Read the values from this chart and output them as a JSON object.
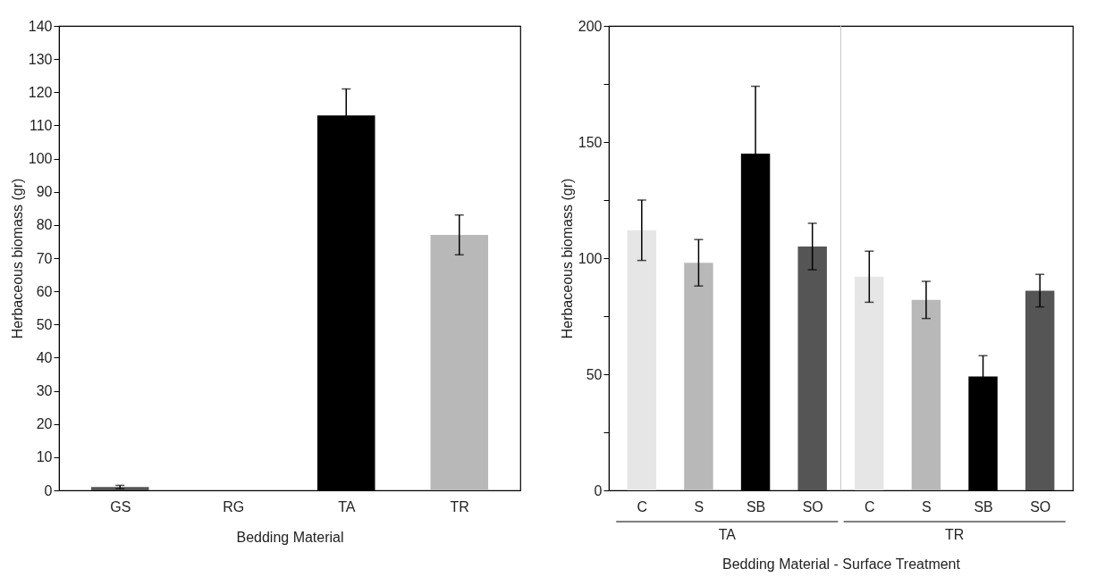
{
  "chart_data": [
    {
      "type": "bar",
      "xlabel": "Bedding Material",
      "ylabel": "Herbaceous biomass (gr)",
      "categories": [
        "GS",
        "RG",
        "TA",
        "TR"
      ],
      "values": [
        1,
        0,
        113,
        77
      ],
      "errors": [
        0.5,
        null,
        8,
        6
      ],
      "colors": [
        "#555555",
        "#555555",
        "#000000",
        "#b8b8b8"
      ],
      "ylim": [
        0,
        140
      ],
      "yticks": [
        0,
        10,
        20,
        30,
        40,
        50,
        60,
        70,
        80,
        90,
        100,
        110,
        120,
        130,
        140
      ]
    },
    {
      "type": "bar",
      "xlabel": "Bedding Material - Surface Treatment",
      "ylabel": "Herbaceous biomass (gr)",
      "categories": [
        "C",
        "S",
        "SB",
        "SO",
        "C",
        "S",
        "SB",
        "SO"
      ],
      "values": [
        112,
        98,
        145,
        105,
        92,
        82,
        49,
        86
      ],
      "errors": [
        13,
        10,
        29,
        10,
        11,
        8,
        9,
        7
      ],
      "colors": [
        "#e6e6e6",
        "#b8b8b8",
        "#000000",
        "#555555",
        "#e6e6e6",
        "#b8b8b8",
        "#000000",
        "#555555"
      ],
      "ylim": [
        0,
        200
      ],
      "yticks": [
        0,
        {
          "value": 25,
          "label": null
        },
        50,
        {
          "value": 75,
          "label": null
        },
        100,
        {
          "value": 125,
          "label": null
        },
        150,
        {
          "value": 175,
          "label": null
        },
        200
      ],
      "annotations": [
        "TA",
        "TR"
      ]
    }
  ]
}
